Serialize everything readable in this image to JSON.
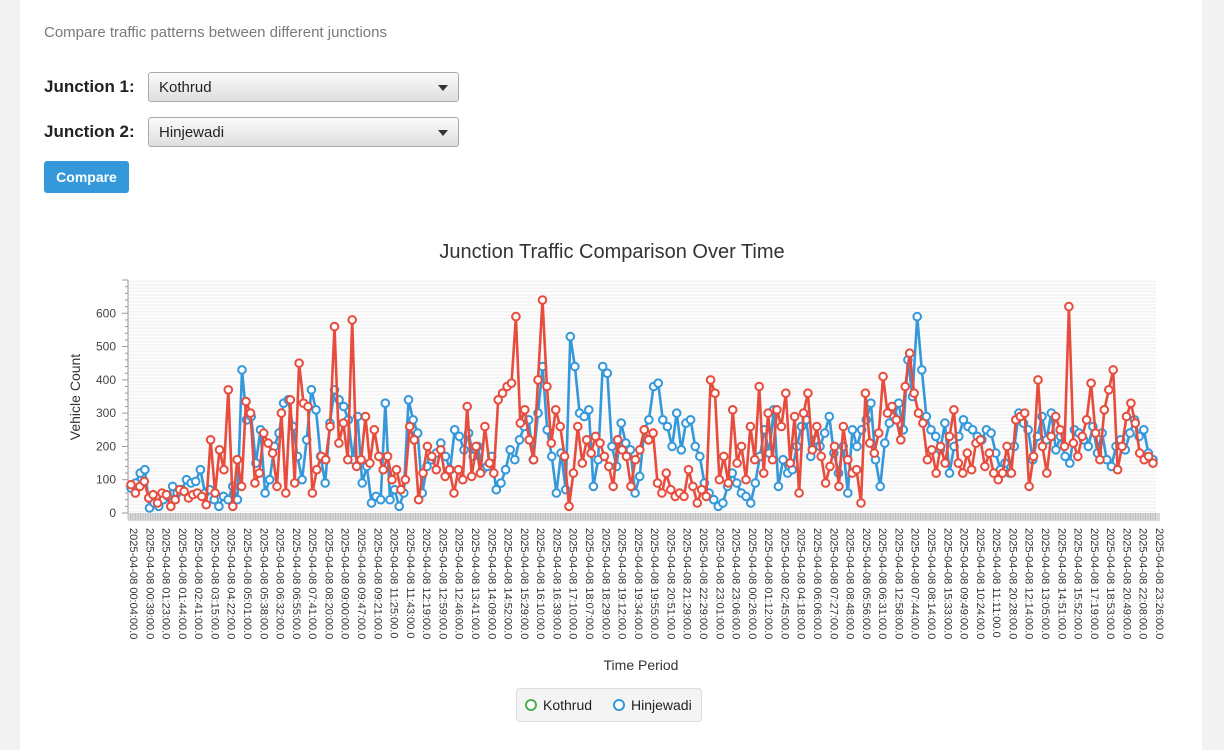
{
  "page": {
    "subtitle": "Compare traffic patterns between different junctions",
    "junction1_label": "Junction 1:",
    "junction1_value": "Kothrud",
    "junction2_label": "Junction 2:",
    "junction2_value": "Hinjewadi",
    "compare_label": "Compare"
  },
  "colors": {
    "hinjewadi": "#3498db",
    "kothrud": "#e74c3c",
    "kothrud_legend": "#4caf50",
    "grid": "#dddddd"
  },
  "chart_data": {
    "type": "line",
    "title": "Junction Traffic Comparison Over Time",
    "xlabel": "Time Period",
    "ylabel": "Vehicle Count",
    "ylim": [
      0,
      700
    ],
    "yticks": [
      0,
      100,
      200,
      300,
      400,
      500,
      600
    ],
    "grid": true,
    "legend_position": "bottom",
    "x_tick_labels": [
      "2025-04-08 00:04:00.0",
      "2025-04-08 00:39:00.0",
      "2025-04-08 01:23:00.0",
      "2025-04-08 01:44:00.0",
      "2025-04-08 02:41:00.0",
      "2025-04-08 03:15:00.0",
      "2025-04-08 04:22:00.0",
      "2025-04-08 05:01:00.0",
      "2025-04-08 05:38:00.0",
      "2025-04-08 06:32:00.0",
      "2025-04-08 06:55:00.0",
      "2025-04-08 07:41:00.0",
      "2025-04-08 08:20:00.0",
      "2025-04-08 09:00:00.0",
      "2025-04-08 09:47:00.0",
      "2025-04-08 09:21:00.0",
      "2025-04-08 11:25:00.0",
      "2025-04-08 11:43:00.0",
      "2025-04-08 12:19:00.0",
      "2025-04-08 12:59:00.0",
      "2025-04-08 12:46:00.0",
      "2025-04-08 13:41:00.0",
      "2025-04-08 14:09:00.0",
      "2025-04-08 14:52:00.0",
      "2025-04-08 15:29:00.0",
      "2025-04-08 16:10:00.0",
      "2025-04-08 16:39:00.0",
      "2025-04-08 17:10:00.0",
      "2025-04-08 18:07:00.0",
      "2025-04-08 18:29:00.0",
      "2025-04-08 19:12:00.0",
      "2025-04-08 19:34:00.0",
      "2025-04-08 19:55:00.0",
      "2025-04-08 20:51:00.0",
      "2025-04-08 21:29:00.0",
      "2025-04-08 22:29:00.0",
      "2025-04-08 23:01:00.0",
      "2025-04-08 23:06:00.0",
      "2025-04-08 00:26:00.0",
      "2025-04-08 01:12:00.0",
      "2025-04-08 02:45:00.0",
      "2025-04-08 04:18:00.0",
      "2025-04-08 06:06:00.0",
      "2025-04-08 07:27:00.0",
      "2025-04-08 08:48:00.0",
      "2025-04-08 05:56:00.0",
      "2025-04-08 06:31:00.0",
      "2025-04-08 12:58:00.0",
      "2025-04-08 07:44:00.0",
      "2025-04-08 08:14:00.0",
      "2025-04-08 15:33:00.0",
      "2025-04-08 09:49:00.0",
      "2025-04-08 10:24:00.0",
      "2025-04-08 11:11:00.0",
      "2025-04-08 20:28:00.0",
      "2025-04-08 12:14:00.0",
      "2025-04-08 13:05:00.0",
      "2025-04-08 14:51:00.0",
      "2025-04-08 15:52:00.0",
      "2025-04-08 17:19:00.0",
      "2025-04-08 18:53:00.0",
      "2025-04-08 20:49:00.0",
      "2025-04-08 22:08:00.0",
      "2025-04-08 23:26:00.0"
    ],
    "series": [
      {
        "name": "Kothrud",
        "values": [
          85,
          60,
          80,
          95,
          45,
          55,
          30,
          60,
          55,
          20,
          40,
          70,
          65,
          45,
          55,
          60,
          50,
          25,
          220,
          60,
          190,
          130,
          370,
          20,
          160,
          80,
          335,
          300,
          90,
          120,
          240,
          210,
          180,
          80,
          300,
          60,
          340,
          90,
          450,
          330,
          320,
          60,
          130,
          170,
          160,
          260,
          560,
          210,
          270,
          160,
          580,
          140,
          160,
          290,
          150,
          250,
          170,
          130,
          170,
          100,
          130,
          70,
          100,
          260,
          220,
          40,
          120,
          200,
          170,
          130,
          190,
          110,
          130,
          60,
          130,
          100,
          320,
          110,
          200,
          120,
          260,
          150,
          120,
          340,
          360,
          380,
          390,
          590,
          270,
          310,
          220,
          160,
          400,
          640,
          380,
          210,
          310,
          260,
          170,
          20,
          120,
          260,
          150,
          220,
          180,
          230,
          210,
          170,
          140,
          80,
          220,
          190,
          170,
          80,
          160,
          190,
          250,
          220,
          240,
          90,
          60,
          120,
          70,
          50,
          60,
          50,
          130,
          80,
          30,
          70,
          50,
          400,
          360,
          100,
          170,
          90,
          310,
          150,
          200,
          100,
          260,
          160,
          380,
          120,
          300,
          160,
          310,
          260,
          360,
          150,
          290,
          60,
          300,
          360,
          190,
          260,
          170,
          90,
          140,
          200,
          80,
          260,
          160,
          120,
          130,
          30,
          360,
          210,
          180,
          240,
          410,
          300,
          320,
          280,
          220,
          380,
          480,
          360,
          300,
          270,
          160,
          190,
          120,
          200,
          150,
          230,
          310,
          150,
          120,
          180,
          130,
          210,
          220,
          140,
          180,
          120,
          100,
          120,
          200,
          120,
          280,
          290,
          300,
          80,
          170,
          400,
          200,
          120,
          230,
          290,
          250,
          200,
          620,
          210,
          170,
          230,
          280,
          390,
          240,
          160,
          310,
          370,
          430,
          130,
          200,
          290,
          330,
          270,
          180,
          160,
          170,
          150
        ]
      },
      {
        "name": "Hinjewadi",
        "values": [
          75,
          90,
          120,
          130,
          15,
          30,
          20,
          40,
          50,
          80,
          60,
          70,
          100,
          90,
          95,
          130,
          60,
          70,
          40,
          20,
          50,
          40,
          80,
          40,
          430,
          280,
          290,
          150,
          250,
          60,
          100,
          200,
          240,
          330,
          340,
          260,
          170,
          100,
          220,
          370,
          310,
          170,
          90,
          270,
          370,
          340,
          320,
          280,
          160,
          290,
          90,
          140,
          30,
          50,
          40,
          330,
          40,
          70,
          20,
          60,
          340,
          280,
          240,
          60,
          140,
          160,
          180,
          210,
          170,
          130,
          250,
          230,
          190,
          240,
          170,
          200,
          130,
          140,
          170,
          70,
          90,
          130,
          190,
          160,
          220,
          260,
          280,
          160,
          300,
          440,
          250,
          170,
          60,
          180,
          70,
          530,
          440,
          300,
          290,
          310,
          80,
          160,
          440,
          420,
          200,
          140,
          270,
          210,
          190,
          60,
          110,
          250,
          280,
          380,
          390,
          280,
          260,
          200,
          300,
          190,
          270,
          280,
          200,
          170,
          90,
          60,
          40,
          20,
          30,
          80,
          120,
          90,
          60,
          50,
          30,
          90,
          170,
          250,
          180,
          310,
          80,
          160,
          120,
          130,
          200,
          260,
          280,
          170,
          220,
          200,
          240,
          290,
          180,
          120,
          200,
          60,
          250,
          200,
          250,
          280,
          330,
          160,
          80,
          210,
          270,
          290,
          330,
          250,
          460,
          350,
          590,
          430,
          290,
          250,
          230,
          190,
          270,
          120,
          200,
          230,
          280,
          260,
          250,
          230,
          220,
          250,
          240,
          180,
          130,
          150,
          120,
          200,
          300,
          270,
          250,
          160,
          230,
          290,
          220,
          300,
          190,
          230,
          170,
          150,
          250,
          240,
          220,
          200,
          260,
          180,
          240,
          160,
          140,
          200,
          220,
          190,
          240,
          280,
          230,
          250,
          180,
          160
        ]
      }
    ]
  }
}
